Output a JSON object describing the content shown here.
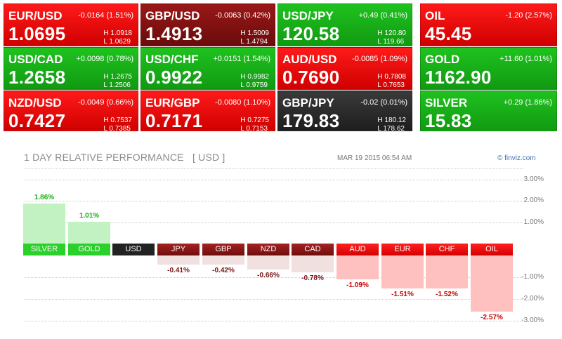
{
  "tiles": [
    {
      "symbol": "EUR/USD",
      "change": "-0.0164 (1.51%)",
      "price": "1.0695",
      "high": "H 1.0918",
      "low": "L 1.0629"
    },
    {
      "symbol": "GBP/USD",
      "change": "-0.0063 (0.42%)",
      "price": "1.4913",
      "high": "H 1.5009",
      "low": "L 1.4794"
    },
    {
      "symbol": "USD/JPY",
      "change": "+0.49 (0.41%)",
      "price": "120.58",
      "high": "H 120.80",
      "low": "L 119.66"
    },
    {
      "symbol": "OIL",
      "change": "-1.20 (2.57%)",
      "price": "45.45"
    },
    {
      "symbol": "USD/CAD",
      "change": "+0.0098 (0.78%)",
      "price": "1.2658",
      "high": "H 1.2675",
      "low": "L 1.2506"
    },
    {
      "symbol": "USD/CHF",
      "change": "+0.0151 (1.54%)",
      "price": "0.9922",
      "high": "H 0.9982",
      "low": "L 0.9759"
    },
    {
      "symbol": "AUD/USD",
      "change": "-0.0085 (1.09%)",
      "price": "0.7690",
      "high": "H 0.7808",
      "low": "L 0.7653"
    },
    {
      "symbol": "GOLD",
      "change": "+11.60 (1.01%)",
      "price": "1162.90"
    },
    {
      "symbol": "NZD/USD",
      "change": "-0.0049 (0.66%)",
      "price": "0.7427",
      "high": "H 0.7537",
      "low": "L 0.7385"
    },
    {
      "symbol": "EUR/GBP",
      "change": "-0.0080 (1.10%)",
      "price": "0.7171",
      "high": "H 0.7275",
      "low": "L 0.7153"
    },
    {
      "symbol": "GBP/JPY",
      "change": "-0.02 (0.01%)",
      "price": "179.83",
      "high": "H 180.12",
      "low": "L 178.62"
    },
    {
      "symbol": "SILVER",
      "change": "+0.29 (1.86%)",
      "price": "15.83"
    }
  ],
  "colors": {
    "up": "#1aad1a",
    "down": "#e00000",
    "dark_down": "#7d1111",
    "neutral": "#2a2a2a"
  },
  "chart_data": {
    "type": "bar",
    "title": "1 DAY RELATIVE PERFORMANCE   [ USD ]",
    "date": "MAR 19 2015 06:54 AM",
    "source": "© finviz.com",
    "categories": [
      "SILVER",
      "GOLD",
      "USD",
      "JPY",
      "GBP",
      "NZD",
      "CAD",
      "AUD",
      "EUR",
      "CHF",
      "OIL"
    ],
    "values": [
      1.86,
      1.01,
      0,
      -0.41,
      -0.42,
      -0.66,
      -0.78,
      -1.09,
      -1.51,
      -1.52,
      -2.57
    ],
    "value_labels": [
      "1.86%",
      "1.01%",
      "",
      "-0.41%",
      "-0.42%",
      "-0.66%",
      "-0.78%",
      "-1.09%",
      "-1.51%",
      "-1.52%",
      "-2.57%"
    ],
    "yticks": [
      "3.00%",
      "2.00%",
      "1.00%",
      "-1.00%",
      "-2.00%",
      "-3.00%"
    ],
    "ylim": [
      -3,
      3
    ],
    "grid": true
  }
}
